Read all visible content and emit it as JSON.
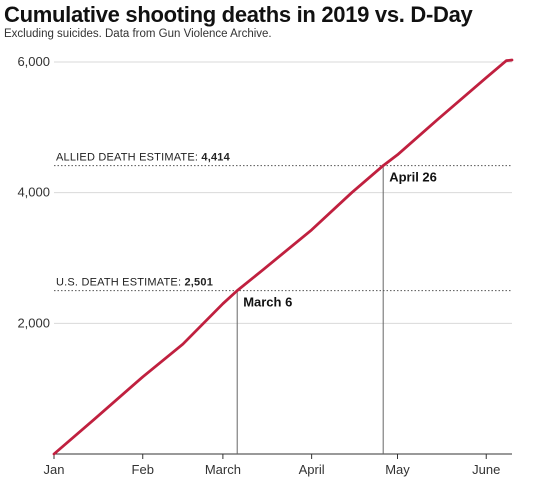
{
  "chart_data": {
    "type": "line",
    "title": "Cumulative shooting deaths in 2019 vs. D-Day",
    "subtitle": "Excluding suicides. Data from Gun Violence Archive.",
    "x_range": [
      "2019-01-01",
      "2019-06-10"
    ],
    "x_ticks": [
      {
        "label": "Jan",
        "date": "2019-01-01"
      },
      {
        "label": "Feb",
        "date": "2019-02-01"
      },
      {
        "label": "March",
        "date": "2019-03-01"
      },
      {
        "label": "April",
        "date": "2019-04-01"
      },
      {
        "label": "May",
        "date": "2019-05-01"
      },
      {
        "label": "June",
        "date": "2019-06-01"
      }
    ],
    "y_range": [
      0,
      6000
    ],
    "y_ticks": [
      {
        "label": "2,000",
        "value": 2000
      },
      {
        "label": "4,000",
        "value": 4000
      },
      {
        "label": "6,000",
        "value": 6000
      }
    ],
    "grid": true,
    "series": [
      {
        "color": "#c0203f",
        "points": [
          {
            "date": "2019-01-01",
            "value": 0
          },
          {
            "date": "2019-01-15",
            "value": 530
          },
          {
            "date": "2019-02-01",
            "value": 1180
          },
          {
            "date": "2019-02-15",
            "value": 1680
          },
          {
            "date": "2019-03-01",
            "value": 2300
          },
          {
            "date": "2019-03-06",
            "value": 2501
          },
          {
            "date": "2019-03-15",
            "value": 2820
          },
          {
            "date": "2019-04-01",
            "value": 3430
          },
          {
            "date": "2019-04-15",
            "value": 4000
          },
          {
            "date": "2019-04-26",
            "value": 4414
          },
          {
            "date": "2019-05-01",
            "value": 4580
          },
          {
            "date": "2019-05-15",
            "value": 5120
          },
          {
            "date": "2019-06-01",
            "value": 5760
          },
          {
            "date": "2019-06-08",
            "value": 6020
          },
          {
            "date": "2019-06-10",
            "value": 6030
          }
        ]
      }
    ],
    "reference_lines": [
      {
        "label": "ALLIED DEATH ESTIMATE:",
        "value_label": "4,414",
        "value": 4414,
        "date": "2019-04-26",
        "annotation": "April 26"
      },
      {
        "label": "U.S. DEATH ESTIMATE:",
        "value_label": "2,501",
        "value": 2501,
        "date": "2019-03-06",
        "annotation": "March 6"
      }
    ],
    "colors": {
      "line": "#c0203f",
      "grid": "#d9d9d9",
      "reference": "#555555"
    }
  }
}
